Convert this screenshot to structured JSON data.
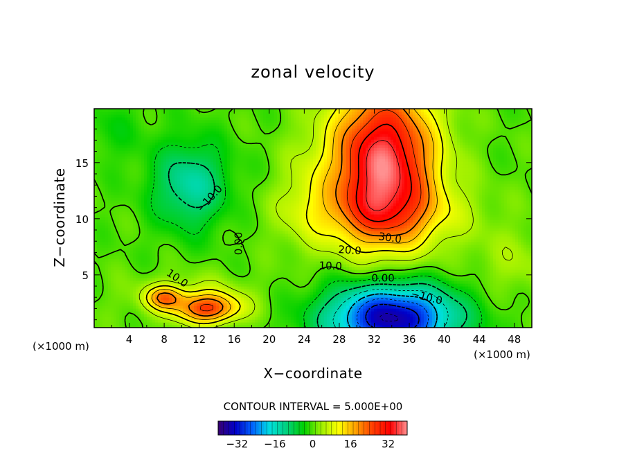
{
  "chart_data": {
    "type": "heatmap",
    "title": "zonal velocity",
    "xlabel": "X−coordinate",
    "ylabel": "Z−coordinate",
    "x_unit_left": "(×1000 m)",
    "x_unit_right": "(×1000 m)",
    "xlim": [
      0,
      50
    ],
    "ylim": [
      0.3,
      19.8
    ],
    "x_ticks": [
      4,
      8,
      12,
      16,
      20,
      24,
      28,
      32,
      36,
      40,
      44,
      48
    ],
    "x_tick_labels": [
      "4",
      "8",
      "12",
      "16",
      "20",
      "24",
      "28",
      "32",
      "36",
      "40",
      "44",
      "48"
    ],
    "y_ticks": [
      5,
      10,
      15
    ],
    "y_tick_labels": [
      "5",
      "10",
      "15"
    ],
    "contour_interval_text": "CONTOUR INTERVAL = 5.000E+00",
    "contour_interval": 5,
    "colorbar": {
      "min": -40,
      "max": 40,
      "ticks": [
        -32,
        -16,
        0,
        16,
        32
      ],
      "tick_labels": [
        "−32",
        "−16",
        "0",
        "16",
        "32"
      ],
      "colors": [
        "#3a0070",
        "#0000c8",
        "#0064ff",
        "#00e0e0",
        "#00d07a",
        "#00d000",
        "#9cf000",
        "#ffff00",
        "#ffa000",
        "#ff3c00",
        "#ff0000",
        "#ff9090"
      ]
    },
    "field_features": [
      {
        "name": "upper jet maximum",
        "x": 33,
        "z": 15,
        "u": 38
      },
      {
        "name": "surface jet minimum",
        "x": 34,
        "z": 1.2,
        "u": -36
      },
      {
        "name": "upper-left minimum",
        "x": 11,
        "z": 13,
        "u": -14
      },
      {
        "name": "low-level left maximum",
        "x": 13,
        "z": 2,
        "u": 22
      },
      {
        "name": "small left maximum",
        "x": 8,
        "z": 3,
        "u": 16
      }
    ],
    "contour_labels": [
      {
        "text": "30.0",
        "x": 33.8,
        "z": 8.3,
        "rotate": 8
      },
      {
        "text": "20.0",
        "x": 29.2,
        "z": 7.2,
        "rotate": 4
      },
      {
        "text": "10.0",
        "x": 27.0,
        "z": 5.8,
        "rotate": 2
      },
      {
        "text": "0.00",
        "x": 33.0,
        "z": 4.7,
        "rotate": 0
      },
      {
        "text": "−10.0",
        "x": 38.0,
        "z": 3.0,
        "rotate": 14
      },
      {
        "text": "−10.0",
        "x": 13.2,
        "z": 11.8,
        "rotate": -48
      },
      {
        "text": "0.00",
        "x": 16.5,
        "z": 7.8,
        "rotate": -90
      },
      {
        "text": "10.0",
        "x": 9.5,
        "z": 4.7,
        "rotate": 35
      }
    ]
  }
}
